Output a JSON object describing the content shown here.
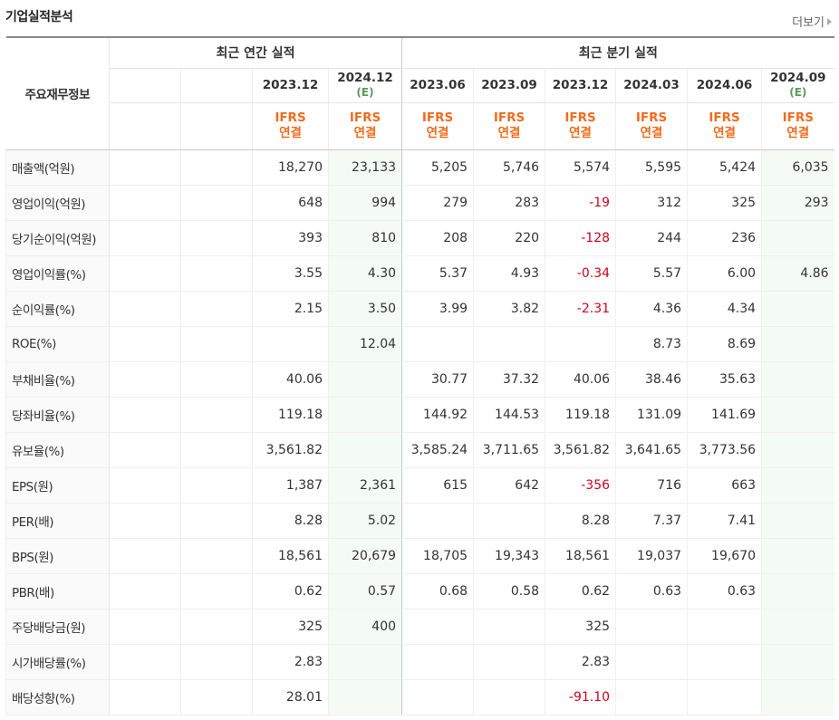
{
  "title": "기업실적분석",
  "more_label": "더보기",
  "header": {
    "row_label": "주요재무정보",
    "annual_label": "최근 연간 실적",
    "quarter_label": "최근 분기 실적",
    "estimate_mark": "(E)",
    "ifrs_label": "IFRS",
    "consolidated_label": "연결",
    "annual_dates": [
      "",
      "",
      "2023.12",
      "2024.12"
    ],
    "quarter_dates": [
      "2023.06",
      "2023.09",
      "2023.12",
      "2024.03",
      "2024.06",
      "2024.09"
    ]
  },
  "rows": [
    {
      "label": "매출액(억원)",
      "values": [
        "",
        "",
        "18,270",
        "23,133",
        "5,205",
        "5,746",
        "5,574",
        "5,595",
        "5,424",
        "6,035"
      ],
      "group_start": true
    },
    {
      "label": "영업이익(억원)",
      "values": [
        "",
        "",
        "648",
        "994",
        "279",
        "283",
        "-19",
        "312",
        "325",
        "293"
      ]
    },
    {
      "label": "당기순이익(억원)",
      "values": [
        "",
        "",
        "393",
        "810",
        "208",
        "220",
        "-128",
        "244",
        "236",
        ""
      ]
    },
    {
      "label": "영업이익률(%)",
      "values": [
        "",
        "",
        "3.55",
        "4.30",
        "5.37",
        "4.93",
        "-0.34",
        "5.57",
        "6.00",
        "4.86"
      ],
      "group_start": true
    },
    {
      "label": "순이익률(%)",
      "values": [
        "",
        "",
        "2.15",
        "3.50",
        "3.99",
        "3.82",
        "-2.31",
        "4.36",
        "4.34",
        ""
      ]
    },
    {
      "label": "ROE(%)",
      "values": [
        "",
        "",
        "",
        "12.04",
        "",
        "",
        "",
        "8.73",
        "8.69",
        ""
      ]
    },
    {
      "label": "부채비율(%)",
      "values": [
        "",
        "",
        "40.06",
        "",
        "30.77",
        "37.32",
        "40.06",
        "38.46",
        "35.63",
        ""
      ],
      "group_start": true
    },
    {
      "label": "당좌비율(%)",
      "values": [
        "",
        "",
        "119.18",
        "",
        "144.92",
        "144.53",
        "119.18",
        "131.09",
        "141.69",
        ""
      ]
    },
    {
      "label": "유보율(%)",
      "values": [
        "",
        "",
        "3,561.82",
        "",
        "3,585.24",
        "3,711.65",
        "3,561.82",
        "3,641.65",
        "3,773.56",
        ""
      ]
    },
    {
      "label": "EPS(원)",
      "values": [
        "",
        "",
        "1,387",
        "2,361",
        "615",
        "642",
        "-356",
        "716",
        "663",
        ""
      ],
      "group_start": true
    },
    {
      "label": "PER(배)",
      "values": [
        "",
        "",
        "8.28",
        "5.02",
        "",
        "",
        "8.28",
        "7.37",
        "7.41",
        ""
      ]
    },
    {
      "label": "BPS(원)",
      "values": [
        "",
        "",
        "18,561",
        "20,679",
        "18,705",
        "19,343",
        "18,561",
        "19,037",
        "19,670",
        ""
      ]
    },
    {
      "label": "PBR(배)",
      "values": [
        "",
        "",
        "0.62",
        "0.57",
        "0.68",
        "0.58",
        "0.62",
        "0.63",
        "0.63",
        ""
      ]
    },
    {
      "label": "주당배당금(원)",
      "values": [
        "",
        "",
        "325",
        "400",
        "",
        "",
        "325",
        "",
        "",
        ""
      ],
      "group_start": true
    },
    {
      "label": "시가배당률(%)",
      "values": [
        "",
        "",
        "2.83",
        "",
        "",
        "",
        "2.83",
        "",
        "",
        ""
      ]
    },
    {
      "label": "배당성향(%)",
      "values": [
        "",
        "",
        "28.01",
        "",
        "",
        "",
        "-91.10",
        "",
        "",
        ""
      ]
    }
  ],
  "colors": {
    "negative": "#d0021b",
    "ifrs": "#f26b1d",
    "estimate_bg": "#f4fbf4"
  }
}
